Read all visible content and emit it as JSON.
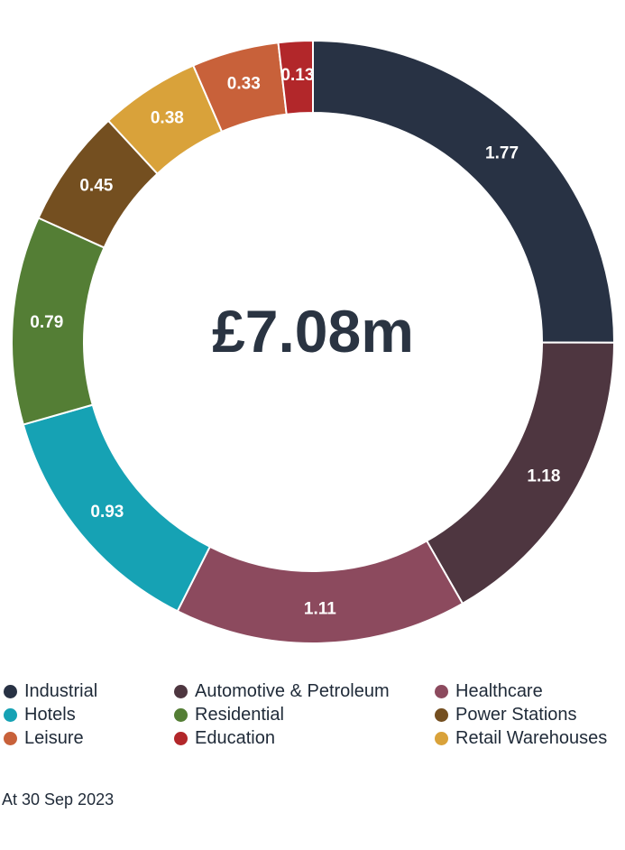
{
  "chart_data": {
    "type": "pie",
    "donut": true,
    "center_label": "£7.08m",
    "unit": "£m",
    "categories": [
      "Industrial",
      "Automotive & Petroleum",
      "Healthcare",
      "Hotels",
      "Residential",
      "Power Stations",
      "Leisure",
      "Education",
      "Retail Warehouses"
    ],
    "slices_clockwise_from_top": [
      {
        "name": "Industrial",
        "value": 1.77,
        "label": "1.77",
        "color": "#283244"
      },
      {
        "name": "Automotive & Petroleum",
        "value": 1.18,
        "label": "1.18",
        "color": "#4e3640"
      },
      {
        "name": "Healthcare",
        "value": 1.11,
        "label": "1.11",
        "color": "#8c4a5e"
      },
      {
        "name": "Hotels",
        "value": 0.93,
        "label": "0.93",
        "color": "#16a2b4"
      },
      {
        "name": "Residential",
        "value": 0.79,
        "label": "0.79",
        "color": "#547e35"
      },
      {
        "name": "Power Stations",
        "value": 0.45,
        "label": "0.45",
        "color": "#744f20"
      },
      {
        "name": "Retail Warehouses",
        "value": 0.38,
        "label": "0.38",
        "color": "#d9a23a"
      },
      {
        "name": "Leisure",
        "value": 0.33,
        "label": "0.33",
        "color": "#c8613a"
      },
      {
        "name": "Education",
        "value": 0.13,
        "label": "0.13",
        "color": "#b2272a"
      }
    ],
    "legend_placement": "bottom"
  },
  "legend": [
    {
      "label": "Industrial",
      "color": "#283244"
    },
    {
      "label": "Automotive & Petroleum",
      "color": "#4e3640"
    },
    {
      "label": "Healthcare",
      "color": "#8c4a5e"
    },
    {
      "label": "Hotels",
      "color": "#16a2b4"
    },
    {
      "label": "Residential",
      "color": "#547e35"
    },
    {
      "label": "Power Stations",
      "color": "#744f20"
    },
    {
      "label": "Leisure",
      "color": "#c8613a"
    },
    {
      "label": "Education",
      "color": "#b2272a"
    },
    {
      "label": "Retail Warehouses",
      "color": "#d9a23a"
    }
  ],
  "footnote": "At 30 Sep 2023"
}
